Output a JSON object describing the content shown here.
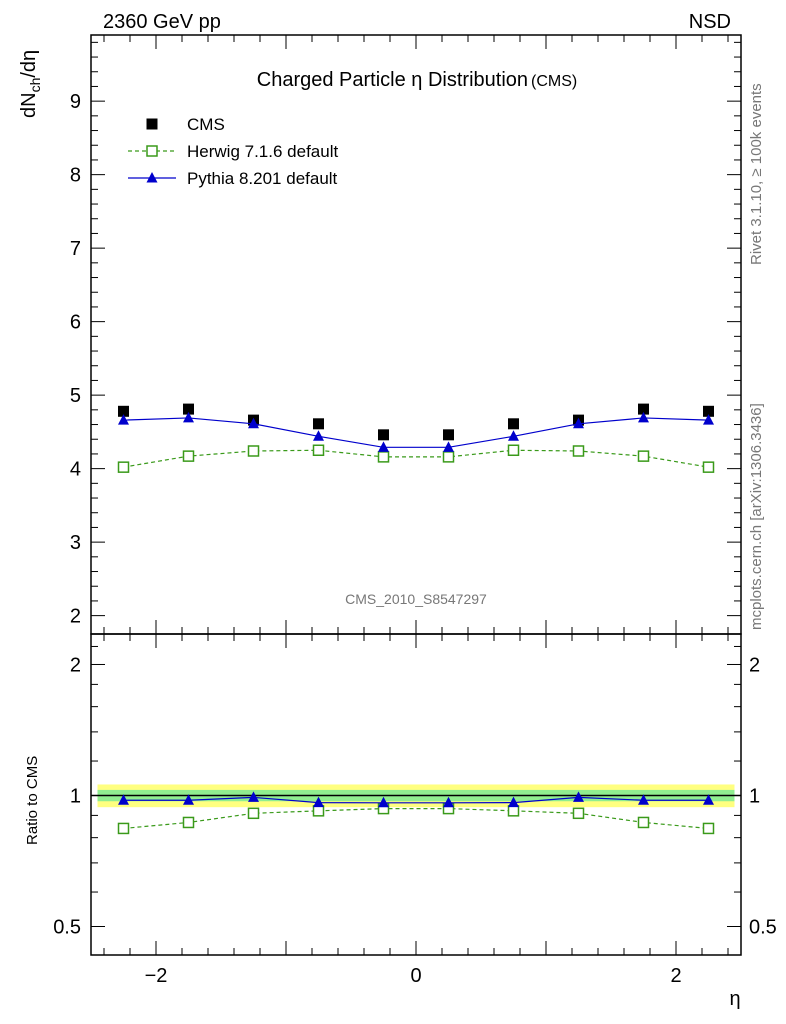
{
  "header": {
    "left": "2360 GeV pp",
    "right": "NSD"
  },
  "side_texts": {
    "rivet": "Rivet 3.1.10, ≥ 100k events",
    "mcplots": "mcplots.cern.ch [arXiv:1306.3436]"
  },
  "watermark": "CMS_2010_S8547297",
  "chart_data": [
    {
      "type": "scatter",
      "title": "Charged Particle η Distribution",
      "title_suffix": "(CMS)",
      "ylabel_main": "dN",
      "ylabel_sub": "ch",
      "ylabel_tail": "/dη",
      "xlabel": "η",
      "xlim": [
        -2.5,
        2.5
      ],
      "ylim": [
        1.75,
        9.9
      ],
      "x_ticks": [
        -2,
        0,
        2
      ],
      "y_ticks": [
        2,
        3,
        4,
        5,
        6,
        7,
        8,
        9
      ],
      "x": [
        -2.25,
        -1.75,
        -1.25,
        -0.75,
        -0.25,
        0.25,
        0.75,
        1.25,
        1.75,
        2.25
      ],
      "series": [
        {
          "name": "CMS",
          "values": [
            4.78,
            4.81,
            4.66,
            4.61,
            4.46,
            4.46,
            4.61,
            4.66,
            4.81,
            4.78
          ],
          "color": "#000000",
          "marker": "filled-square",
          "line": "none"
        },
        {
          "name": "Herwig 7.1.6 default",
          "values": [
            4.02,
            4.17,
            4.24,
            4.25,
            4.16,
            4.16,
            4.25,
            4.24,
            4.17,
            4.02
          ],
          "color": "#3a9a1a",
          "marker": "open-square",
          "line": "dashed"
        },
        {
          "name": "Pythia 8.201 default",
          "values": [
            4.66,
            4.69,
            4.61,
            4.44,
            4.29,
            4.29,
            4.44,
            4.61,
            4.69,
            4.66
          ],
          "color": "#0000cc",
          "marker": "filled-triangle",
          "line": "solid"
        }
      ]
    },
    {
      "type": "scatter",
      "ylabel": "Ratio to CMS",
      "xlabel": "η",
      "xlim": [
        -2.5,
        2.5
      ],
      "ylim": [
        0.43,
        2.35
      ],
      "y_scale": "log",
      "y_ticks": [
        0.5,
        1,
        2
      ],
      "x": [
        -2.25,
        -1.75,
        -1.25,
        -0.75,
        -0.25,
        0.25,
        0.75,
        1.25,
        1.75,
        2.25
      ],
      "band_outer": 0.06,
      "band_inner": 0.03,
      "band_outer_color": "#ffff80",
      "band_inner_color": "#90ee90",
      "series": [
        {
          "name": "Herwig 7.1.6 default",
          "values": [
            0.84,
            0.867,
            0.91,
            0.922,
            0.933,
            0.933,
            0.922,
            0.91,
            0.867,
            0.84
          ],
          "color": "#3a9a1a",
          "marker": "open-square",
          "line": "dashed"
        },
        {
          "name": "Pythia 8.201 default",
          "values": [
            0.975,
            0.975,
            0.99,
            0.963,
            0.962,
            0.962,
            0.963,
            0.99,
            0.975,
            0.975
          ],
          "color": "#0000cc",
          "marker": "filled-triangle",
          "line": "solid"
        }
      ]
    }
  ]
}
